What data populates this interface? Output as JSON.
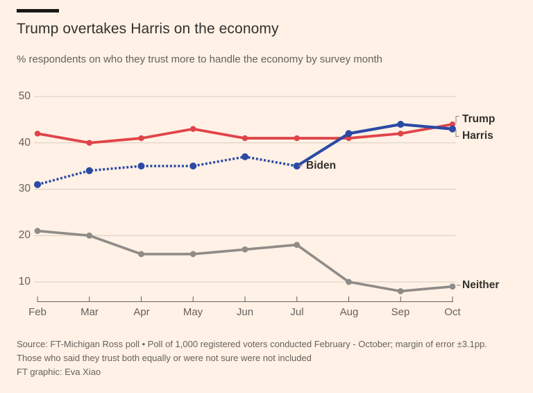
{
  "colors": {
    "background": "#FFF1E5",
    "accent_bar": "#1A1817",
    "title_text": "#33302E",
    "muted_text": "#66605C",
    "grid_line": "#D8CBBF",
    "axis_line": "#66605C",
    "leader_line": "#9C9389",
    "trump_red": "#E0444A",
    "dem_blue": "#2B4AA5",
    "neither_grey": "#8F8B88"
  },
  "chart_data": {
    "type": "line",
    "title": "Trump overtakes Harris on the economy",
    "subtitle": "% respondents on who they trust more to handle the economy by survey month",
    "x": [
      "Feb",
      "Mar",
      "Apr",
      "May",
      "Jun",
      "Jul",
      "Aug",
      "Sep",
      "Oct"
    ],
    "xlabel": "",
    "ylabel": "",
    "yticks": [
      50,
      40,
      30,
      20,
      10
    ],
    "ylim": [
      5,
      52
    ],
    "grid": "horizontal-only",
    "legend": "direct-labels",
    "series": [
      {
        "name": "Neither",
        "color": "#8F8B88",
        "style": "solid",
        "values": [
          21,
          20,
          16,
          16,
          17,
          18,
          10,
          8,
          9
        ]
      },
      {
        "name": "Trump",
        "color": "#E0444A",
        "style": "solid",
        "values": [
          42,
          40,
          41,
          43,
          41,
          41,
          41,
          42,
          44
        ]
      },
      {
        "name": "Biden",
        "color": "#2B4AA5",
        "style": "dotted",
        "values": [
          31,
          34,
          35,
          35,
          37,
          35,
          null,
          null,
          null
        ]
      },
      {
        "name": "Harris",
        "color": "#2B4AA5",
        "style": "solid",
        "values": [
          null,
          null,
          null,
          null,
          null,
          35,
          42,
          44,
          43
        ]
      }
    ]
  },
  "footer": {
    "source": "Source: FT-Michigan Ross poll • Poll of 1,000 registered voters conducted February - October; margin of error ±3.1pp. Those who said they trust both equally or were not sure were not included",
    "credit": "FT graphic: Eva Xiao"
  }
}
